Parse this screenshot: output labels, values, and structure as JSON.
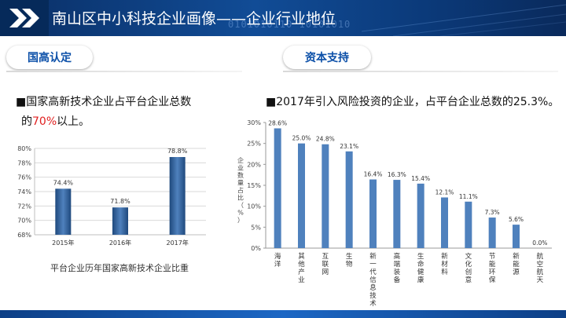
{
  "header": {
    "title": "南山区中小科技企业画像——企业行业地位",
    "deco_text": "0101010110    10101010"
  },
  "sections": {
    "left": {
      "label": "国高认定",
      "line1": "■国家高新技术企业占平台企业总数",
      "line2_prefix": "的",
      "line2_highlight": "70%",
      "line2_suffix": "以上。",
      "caption": "平台企业历年国家高新技术企业比重"
    },
    "right": {
      "label": "资本支持",
      "line1": "■2017年引入风险投资的企业，占平台企业总数的25.3%。"
    }
  },
  "colors": {
    "bar": "#4f81bd",
    "bar_dark": "#1f497d",
    "accent_red": "#e02020",
    "title_blue": "#0b4fa8"
  },
  "chart_data": [
    {
      "type": "bar",
      "categories": [
        "2015年",
        "2016年",
        "2017年"
      ],
      "values": [
        74.4,
        71.8,
        78.8
      ],
      "value_labels": [
        "74.4%",
        "71.8%",
        "78.8%"
      ],
      "ylim": [
        68,
        80
      ],
      "yticks": [
        68,
        70,
        72,
        74,
        76,
        78,
        80
      ],
      "ytick_labels": [
        "68%",
        "70%",
        "72%",
        "74%",
        "76%",
        "78%",
        "80%"
      ],
      "grid": true
    },
    {
      "type": "bar",
      "categories": [
        "海洋",
        "其他产业",
        "互联网",
        "生物",
        "新一代信息技术",
        "高端装备",
        "生命健康",
        "新材料",
        "文化创意",
        "节能环保",
        "新能源",
        "航空航天"
      ],
      "values": [
        28.6,
        25.0,
        24.8,
        23.1,
        16.4,
        16.3,
        15.4,
        12.1,
        11.1,
        7.3,
        5.6,
        0.0
      ],
      "value_labels": [
        "28.6%",
        "25.0%",
        "24.8%",
        "23.1%",
        "16.4%",
        "16.3%",
        "15.4%",
        "12.1%",
        "11.1%",
        "7.3%",
        "5.6%",
        "0.0%"
      ],
      "ylabel": "企业数量占比（%）",
      "ylim": [
        0,
        30
      ],
      "yticks": [
        0,
        5,
        10,
        15,
        20,
        25,
        30
      ],
      "ytick_labels": [
        "0%",
        "5%",
        "10%",
        "15%",
        "20%",
        "25%",
        "30%"
      ],
      "grid": false
    }
  ]
}
